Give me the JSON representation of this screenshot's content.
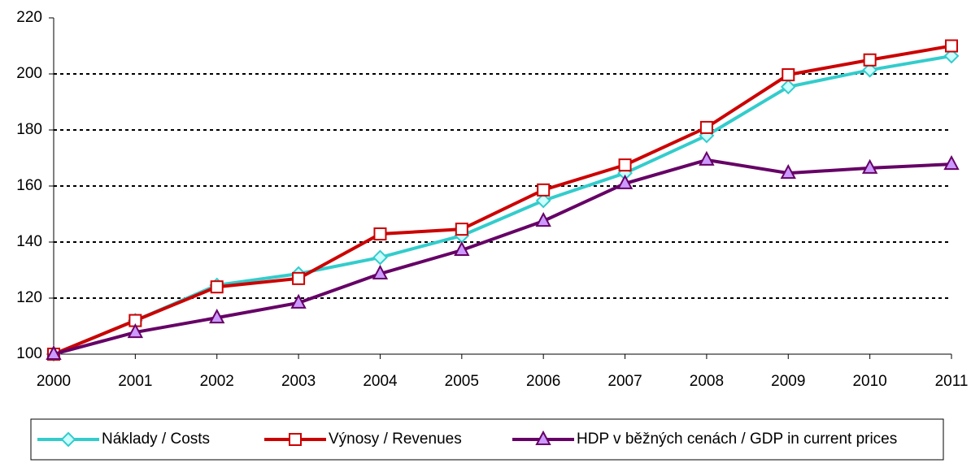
{
  "chart_data": {
    "type": "line",
    "x": [
      2000,
      2001,
      2002,
      2003,
      2004,
      2005,
      2006,
      2007,
      2008,
      2009,
      2010,
      2011
    ],
    "xlim": [
      2000,
      2011
    ],
    "xticks": [
      2000,
      2001,
      2002,
      2003,
      2004,
      2005,
      2006,
      2007,
      2008,
      2009,
      2010,
      2011
    ],
    "ylim": [
      100,
      220
    ],
    "yticks": [
      100,
      120,
      140,
      160,
      180,
      200,
      220
    ],
    "grid": true,
    "legend": "bottom",
    "series": [
      {
        "name": "Náklady / Costs",
        "color": "#33cccc",
        "marker": "diamond",
        "marker_fill": "#ccffff",
        "values": [
          100,
          112,
          124.6,
          128.7,
          134.5,
          142.3,
          154.8,
          164.6,
          178,
          195.4,
          201.4,
          206.4
        ]
      },
      {
        "name": "Výnosy / Revenues",
        "color": "#cc0000",
        "marker": "square",
        "marker_fill": "#ffffff",
        "values": [
          100,
          112,
          124,
          127,
          142.9,
          144.6,
          158.6,
          167.5,
          180.9,
          199.7,
          205,
          210
        ]
      },
      {
        "name": "HDP v běžných cenách / GDP in current prices",
        "color": "#660066",
        "marker": "triangle",
        "marker_fill": "#cc99ff",
        "values": [
          100,
          107.8,
          113,
          118.3,
          128.7,
          137.1,
          147.5,
          160.9,
          169.3,
          164.6,
          166.4,
          167.8
        ]
      }
    ]
  }
}
